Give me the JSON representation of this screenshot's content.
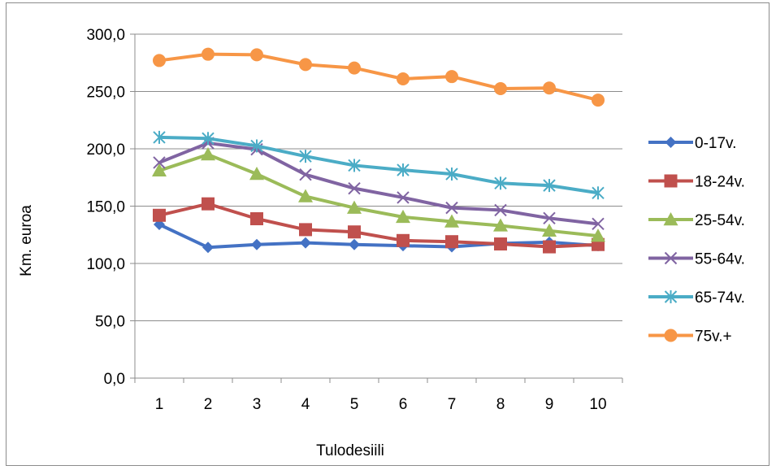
{
  "chart_data": {
    "type": "line",
    "title": "",
    "xlabel": "Tulodesiili",
    "ylabel": "Km. euroa",
    "ylim": [
      0,
      300
    ],
    "yticks": [
      "0,0",
      "50,0",
      "100,0",
      "150,0",
      "200,0",
      "250,0",
      "300,0"
    ],
    "categories": [
      "1",
      "2",
      "3",
      "4",
      "5",
      "6",
      "7",
      "8",
      "9",
      "10"
    ],
    "grid": "horizontal",
    "legend_position": "right",
    "series": [
      {
        "name": "0-17v.",
        "color": "#4472C4",
        "marker": "diamond",
        "values": [
          134,
          114,
          116.5,
          118,
          116.5,
          115.5,
          114.5,
          117.5,
          118.5,
          115.5
        ]
      },
      {
        "name": "18-24v.",
        "color": "#C0504D",
        "marker": "square",
        "values": [
          142,
          152,
          139,
          129.5,
          127.5,
          120,
          119,
          117,
          114.5,
          116.5
        ]
      },
      {
        "name": "25-54v.",
        "color": "#9BBB59",
        "marker": "triangle",
        "values": [
          181,
          195,
          178,
          158.5,
          148.5,
          140.5,
          136.5,
          133,
          128.5,
          124
        ]
      },
      {
        "name": "55-64v.",
        "color": "#8064A2",
        "marker": "x",
        "values": [
          188,
          205,
          199.5,
          177.5,
          165.5,
          157.5,
          148.5,
          146.5,
          139.5,
          134.5
        ]
      },
      {
        "name": "65-74v.",
        "color": "#4BACC6",
        "marker": "star",
        "values": [
          210,
          209,
          202.5,
          193.5,
          185.5,
          181.5,
          178,
          170,
          168,
          161.5
        ]
      },
      {
        "name": "75v.+",
        "color": "#F79646",
        "marker": "circle",
        "values": [
          277,
          282.5,
          282,
          273.5,
          270.5,
          261,
          263,
          252.5,
          253,
          242.5
        ]
      }
    ]
  }
}
